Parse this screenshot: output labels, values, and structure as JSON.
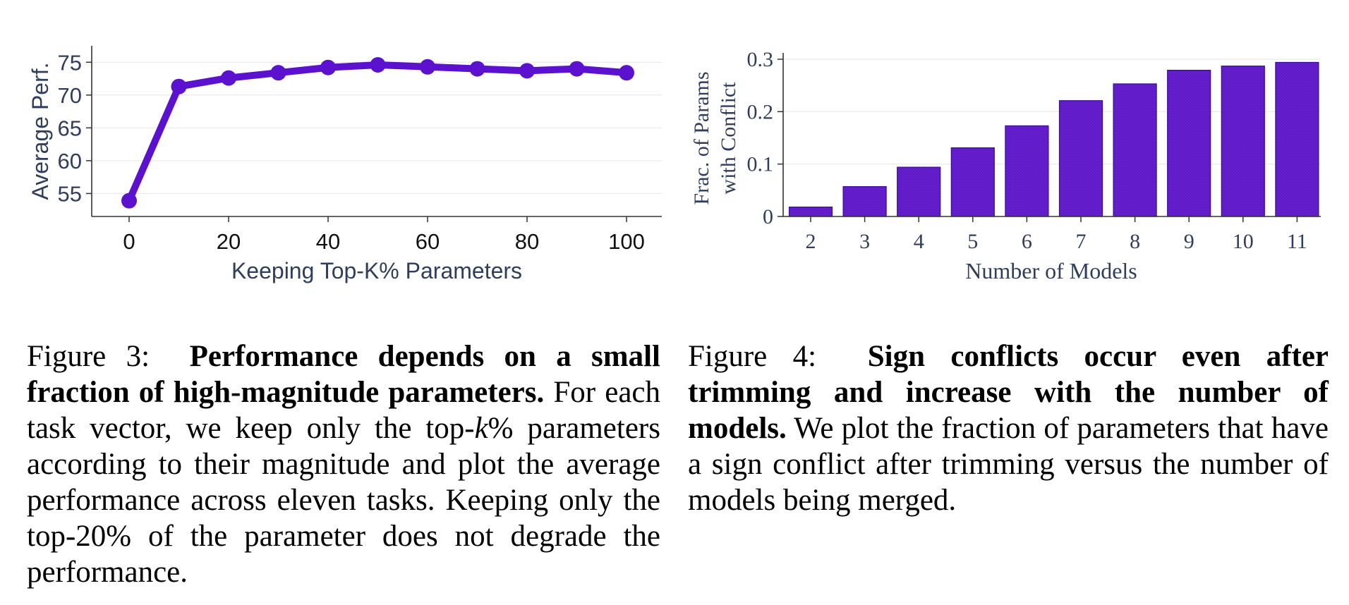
{
  "colors": {
    "accent": "#5c11cf",
    "bar_fill": "#6b1fd6",
    "bar_edge": "#3d0b99",
    "axis_text": "#2f3e5e",
    "grid": "#e6e6e6"
  },
  "chart_data": [
    {
      "type": "line",
      "title": "",
      "xlabel": "Keeping Top-K% Parameters",
      "ylabel": "Average Perf.",
      "x": [
        0,
        10,
        20,
        30,
        40,
        50,
        60,
        70,
        80,
        90,
        100
      ],
      "y": [
        53.9,
        71.3,
        72.6,
        73.4,
        74.2,
        74.6,
        74.3,
        74.0,
        73.7,
        74.0,
        73.4
      ],
      "xticks": [
        "0",
        "20",
        "40",
        "60",
        "80",
        "100"
      ],
      "xtick_values": [
        0,
        20,
        40,
        60,
        80,
        100
      ],
      "yticks": [
        "55",
        "60",
        "65",
        "70",
        "75"
      ],
      "ytick_values": [
        55,
        60,
        65,
        70,
        75
      ],
      "xlim": [
        -5,
        105
      ],
      "ylim": [
        51.5,
        77.5
      ],
      "grid": true
    },
    {
      "type": "bar",
      "title": "",
      "xlabel": "Number of Models",
      "ylabel": [
        "Frac. of Params",
        "with Conflict"
      ],
      "categories": [
        "2",
        "3",
        "4",
        "5",
        "6",
        "7",
        "8",
        "9",
        "10",
        "11"
      ],
      "values": [
        0.018,
        0.057,
        0.094,
        0.131,
        0.173,
        0.221,
        0.253,
        0.279,
        0.287,
        0.294
      ],
      "yticks": [
        "0",
        "0.1",
        "0.2",
        "0.3"
      ],
      "ytick_values": [
        0,
        0.1,
        0.2,
        0.3
      ],
      "ylim": [
        0,
        0.3
      ],
      "grid": true
    }
  ],
  "captions": {
    "fig3": {
      "label": "Figure 3:",
      "bold": "Performance depends on a small fraction of high-magnitude parameters.",
      "text_before_k": "For each task vector, we keep only the top-",
      "k": "k",
      "text_after_k": "% parameters according to their magnitude and plot the average performance across eleven tasks. Keeping only the top-20% of the parameter does not degrade the performance."
    },
    "fig4": {
      "label": "Figure 4:",
      "bold": "Sign conflicts occur even after trimming and increase with the number of models.",
      "text": "We plot the fraction of parameters that have a sign conflict after trimming versus the number of models being merged."
    }
  }
}
